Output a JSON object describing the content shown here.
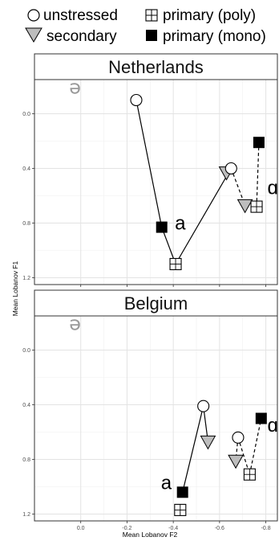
{
  "chart_data": {
    "type": "scatter",
    "xlabel": "Mean Lobanov F2",
    "ylabel": "Mean Lobanov F1",
    "x_reversed": true,
    "y_reversed": true,
    "xlim": [
      0.2,
      -0.85
    ],
    "ylim": [
      -0.25,
      1.25
    ],
    "x_ticks": [
      {
        "value": 0.0,
        "label": "0.0"
      },
      {
        "value": -0.2,
        "label": "-0.2"
      },
      {
        "value": -0.4,
        "label": "-0.4"
      },
      {
        "value": -0.6,
        "label": "-0.6"
      },
      {
        "value": -0.8,
        "label": "-0.8"
      }
    ],
    "y_ticks": [
      {
        "value": 0.0,
        "label": "0.0"
      },
      {
        "value": 0.4,
        "label": "0.4"
      },
      {
        "value": 0.8,
        "label": "0.8"
      },
      {
        "value": 1.2,
        "label": "1.2"
      }
    ],
    "grid": true,
    "legend_position": "top",
    "legend": [
      {
        "key": "unstressed",
        "label": "unstressed",
        "shape": "circle",
        "fill": "#ffffff"
      },
      {
        "key": "primary_poly",
        "label": "primary (poly)",
        "shape": "square-cross",
        "fill": "#ffffff"
      },
      {
        "key": "secondary",
        "label": "secondary",
        "shape": "triangle-down",
        "fill": "#bdbdbd"
      },
      {
        "key": "primary_mono",
        "label": "primary (mono)",
        "shape": "square",
        "fill": "#000000"
      }
    ],
    "panels": [
      {
        "name": "Netherlands",
        "schwa_label": "ə",
        "schwa_pos": {
          "x": 0.05,
          "y": -0.2
        },
        "points": [
          {
            "vowel": "ə",
            "category": "unstressed",
            "x": -0.24,
            "y": -0.1
          },
          {
            "vowel": "a",
            "category": "primary_mono",
            "x": -0.35,
            "y": 0.83
          },
          {
            "vowel": "a",
            "category": "primary_poly",
            "x": -0.41,
            "y": 1.1
          },
          {
            "vowel": "a",
            "category": "secondary",
            "x": -0.63,
            "y": 0.43
          },
          {
            "vowel": "ɑ",
            "category": "unstressed",
            "x": -0.65,
            "y": 0.4
          },
          {
            "vowel": "ɑ",
            "category": "secondary",
            "x": -0.71,
            "y": 0.67
          },
          {
            "vowel": "ɑ",
            "category": "primary_poly",
            "x": -0.76,
            "y": 0.68
          },
          {
            "vowel": "ɑ",
            "category": "primary_mono",
            "x": -0.77,
            "y": 0.21
          }
        ],
        "segments": [
          {
            "from": [
              -0.24,
              -0.1
            ],
            "to": [
              -0.35,
              0.83
            ],
            "style": "solid"
          },
          {
            "from": [
              -0.35,
              0.83
            ],
            "to": [
              -0.41,
              1.1
            ],
            "style": "solid"
          },
          {
            "from": [
              -0.41,
              1.1
            ],
            "to": [
              -0.65,
              0.4
            ],
            "style": "solid"
          },
          {
            "from": [
              -0.65,
              0.4
            ],
            "to": [
              -0.71,
              0.67
            ],
            "style": "dashed"
          },
          {
            "from": [
              -0.71,
              0.67
            ],
            "to": [
              -0.76,
              0.68
            ],
            "style": "dashed"
          },
          {
            "from": [
              -0.76,
              0.68
            ],
            "to": [
              -0.77,
              0.21
            ],
            "style": "dashed"
          }
        ],
        "vowel_labels": [
          {
            "text": "a",
            "x": -0.43,
            "y": 0.8
          },
          {
            "text": "ɑ",
            "x": -0.83,
            "y": 0.54
          }
        ]
      },
      {
        "name": "Belgium",
        "schwa_label": "ə",
        "schwa_pos": {
          "x": 0.05,
          "y": -0.2
        },
        "points": [
          {
            "vowel": "a",
            "category": "unstressed",
            "x": -0.53,
            "y": 0.41
          },
          {
            "vowel": "a",
            "category": "secondary",
            "x": -0.55,
            "y": 0.67
          },
          {
            "vowel": "a",
            "category": "primary_mono",
            "x": -0.44,
            "y": 1.04
          },
          {
            "vowel": "a",
            "category": "primary_poly",
            "x": -0.43,
            "y": 1.17
          },
          {
            "vowel": "ɑ",
            "category": "unstressed",
            "x": -0.68,
            "y": 0.64
          },
          {
            "vowel": "ɑ",
            "category": "secondary",
            "x": -0.67,
            "y": 0.81
          },
          {
            "vowel": "ɑ",
            "category": "primary_poly",
            "x": -0.73,
            "y": 0.91
          },
          {
            "vowel": "ɑ",
            "category": "primary_mono",
            "x": -0.78,
            "y": 0.5
          }
        ],
        "segments": [
          {
            "from": [
              -0.53,
              0.41
            ],
            "to": [
              -0.55,
              0.67
            ],
            "style": "solid"
          },
          {
            "from": [
              -0.53,
              0.41
            ],
            "to": [
              -0.44,
              1.04
            ],
            "style": "solid"
          },
          {
            "from": [
              -0.68,
              0.64
            ],
            "to": [
              -0.67,
              0.81
            ],
            "style": "dashed"
          },
          {
            "from": [
              -0.68,
              0.64
            ],
            "to": [
              -0.73,
              0.91
            ],
            "style": "dashed"
          },
          {
            "from": [
              -0.73,
              0.91
            ],
            "to": [
              -0.78,
              0.5
            ],
            "style": "dashed"
          }
        ],
        "vowel_labels": [
          {
            "text": "a",
            "x": -0.37,
            "y": 0.97
          },
          {
            "text": "ɑ",
            "x": -0.83,
            "y": 0.55
          }
        ]
      }
    ]
  }
}
